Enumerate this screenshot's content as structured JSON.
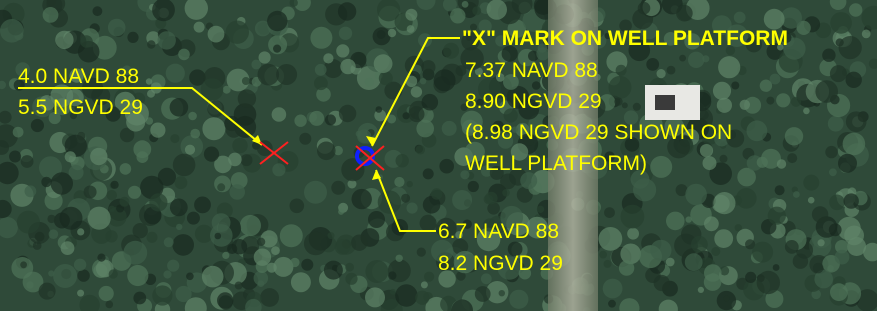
{
  "annotations": {
    "left": {
      "lines": [
        "4.0 NAVD 88",
        "5.5 NGVD 29"
      ]
    },
    "well": {
      "title": "\"X\" MARK ON WELL PLATFORM",
      "lines": [
        "7.37 NAVD 88",
        "8.90 NGVD 29",
        "(8.98 NGVD 29 SHOWN ON",
        "WELL PLATFORM)"
      ]
    },
    "bottom": {
      "lines": [
        "6.7 NAVD 88",
        "8.2 NGVD 29"
      ]
    }
  }
}
